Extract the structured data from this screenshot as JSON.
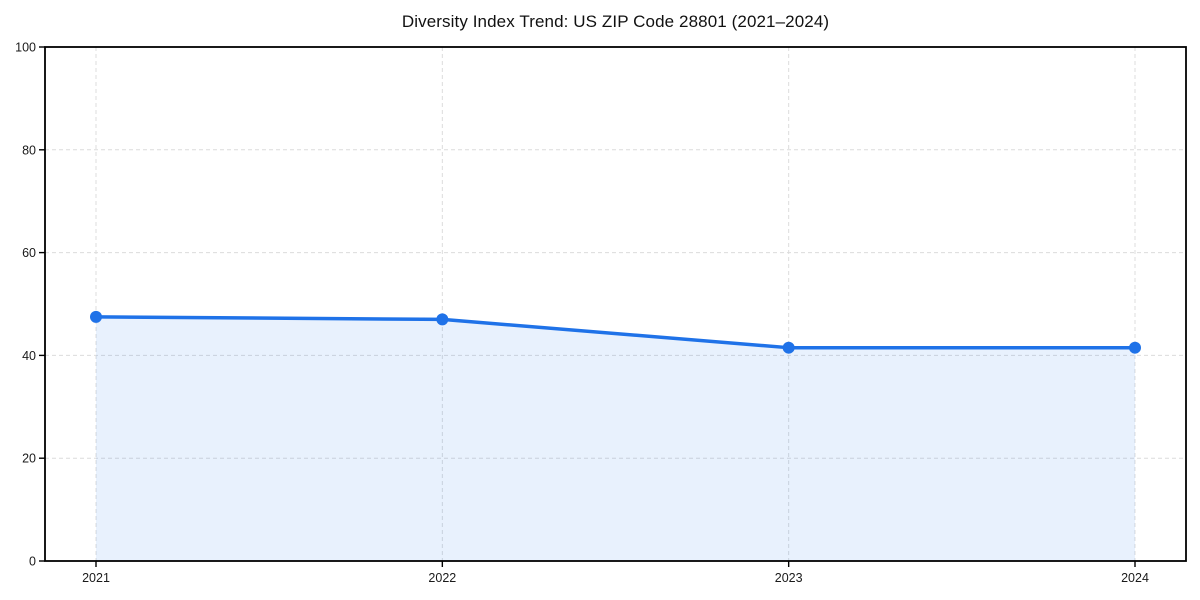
{
  "chart_data": {
    "type": "area",
    "title": "Diversity Index Trend: US ZIP Code 28801 (2021–2024)",
    "categories": [
      "2021",
      "2022",
      "2023",
      "2024"
    ],
    "series": [
      {
        "name": "Diversity Index",
        "values": [
          47.5,
          47.0,
          41.5,
          41.5
        ]
      }
    ],
    "xlabel": "",
    "ylabel": "",
    "ylim": [
      0,
      100
    ],
    "y_ticks": [
      0,
      20,
      40,
      60,
      80,
      100
    ],
    "x_ticks": [
      "2021",
      "2022",
      "2023",
      "2024"
    ],
    "grid": true,
    "grid_style": "dashed",
    "legend": false,
    "marker": "circle",
    "colors": {
      "line": "#1f72e8",
      "marker": "#1f72e8",
      "fill": "#1f72e8",
      "fill_opacity": 0.1,
      "grid": "#dcdcdc",
      "spine": "#000000",
      "tick_text": "#1a1a1a",
      "title_text": "#111111",
      "background": "#ffffff"
    }
  }
}
